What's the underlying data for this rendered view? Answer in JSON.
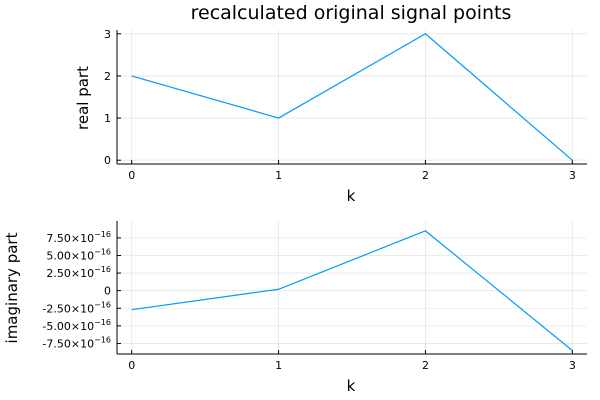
{
  "chart_data": [
    {
      "type": "line",
      "title": "recalculated original signal points",
      "xlabel": "k",
      "ylabel": "real part",
      "grid": true,
      "legend": "none",
      "color": "#009af9",
      "x": [
        0,
        1,
        2,
        3
      ],
      "y": [
        2,
        1,
        3,
        0
      ],
      "xlim": [
        -0.1,
        3.1
      ],
      "ylim": [
        -0.09,
        3.09
      ],
      "xticks": [
        0,
        1,
        2,
        3
      ],
      "xtick_labels": [
        "0",
        "1",
        "2",
        "3"
      ],
      "yticks": [
        0,
        1,
        2,
        3
      ],
      "ytick_labels": [
        "0",
        "1",
        "2",
        "3"
      ]
    },
    {
      "type": "line",
      "title": "",
      "xlabel": "k",
      "ylabel": "imaginary part",
      "grid": true,
      "legend": "none",
      "color": "#009af9",
      "x": [
        0,
        1,
        2,
        3
      ],
      "y": [
        -2.7e-16,
        2e-17,
        8.5e-16,
        -8.5e-16
      ],
      "xlim": [
        -0.1,
        3.1
      ],
      "ylim": [
        -9e-16,
        9.9e-16
      ],
      "xticks": [
        0,
        1,
        2,
        3
      ],
      "xtick_labels": [
        "0",
        "1",
        "2",
        "3"
      ],
      "yticks": [
        -7.5e-16,
        -5e-16,
        -2.5e-16,
        0,
        2.5e-16,
        5e-16,
        7.5e-16
      ],
      "ytick_labels": [
        {
          "mant": "-7.50",
          "exp": "−16"
        },
        {
          "mant": "-5.00",
          "exp": "−16"
        },
        {
          "mant": "-2.50",
          "exp": "−16"
        },
        {
          "mant": "0",
          "exp": ""
        },
        {
          "mant": "2.50",
          "exp": "−16"
        },
        {
          "mant": "5.00",
          "exp": "−16"
        },
        {
          "mant": "7.50",
          "exp": "−16"
        }
      ]
    }
  ]
}
